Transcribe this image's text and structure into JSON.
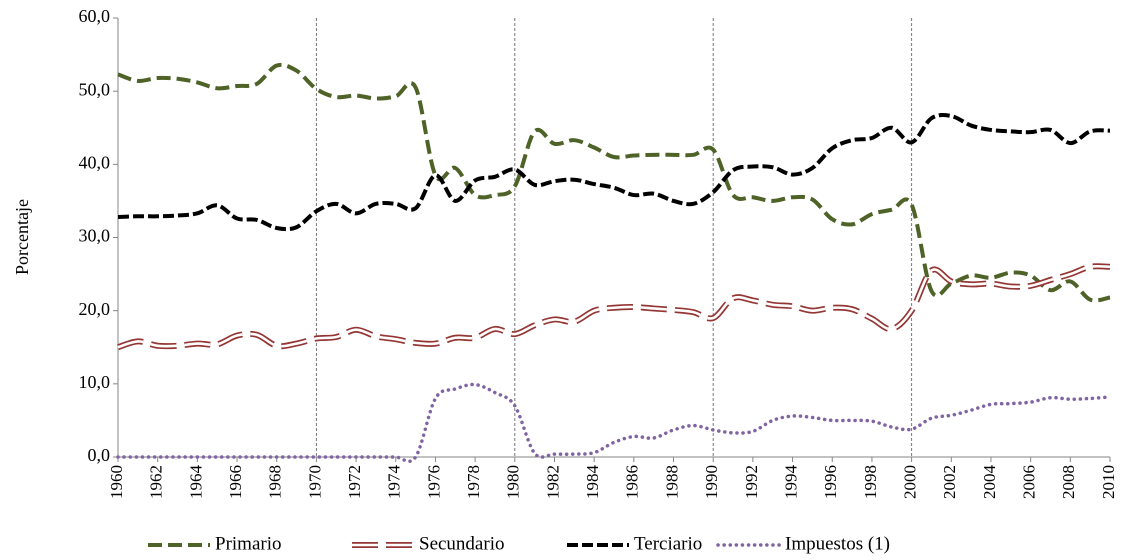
{
  "chart_data": {
    "type": "line",
    "y_label": "Porcentaje",
    "x": [
      1960,
      1961,
      1962,
      1963,
      1964,
      1965,
      1966,
      1967,
      1968,
      1969,
      1970,
      1971,
      1972,
      1973,
      1974,
      1975,
      1976,
      1977,
      1978,
      1979,
      1980,
      1981,
      1982,
      1983,
      1984,
      1985,
      1986,
      1987,
      1988,
      1989,
      1990,
      1991,
      1992,
      1993,
      1994,
      1995,
      1996,
      1997,
      1998,
      1999,
      2000,
      2001,
      2002,
      2003,
      2004,
      2005,
      2006,
      2007,
      2008,
      2009,
      2010
    ],
    "xlim": [
      1960,
      2010
    ],
    "xticks": [
      1960,
      1962,
      1964,
      1966,
      1968,
      1970,
      1972,
      1974,
      1976,
      1978,
      1980,
      1982,
      1984,
      1986,
      1988,
      1990,
      1992,
      1994,
      1996,
      1998,
      2000,
      2002,
      2004,
      2006,
      2008,
      2010
    ],
    "ylim": [
      0,
      60
    ],
    "yticks": [
      {
        "value": 0,
        "label": "0,0"
      },
      {
        "value": 10,
        "label": "10,0"
      },
      {
        "value": 20,
        "label": "20,0"
      },
      {
        "value": 30,
        "label": "30,0"
      },
      {
        "value": 40,
        "label": "40,0"
      },
      {
        "value": 50,
        "label": "50,0"
      },
      {
        "value": 60,
        "label": "60,0"
      }
    ],
    "vlines": [
      1970,
      1980,
      1990,
      2000
    ],
    "series": [
      {
        "name": "Primario",
        "color": "#4f6228",
        "style": "dashed",
        "values": [
          52.3,
          51.4,
          51.8,
          51.7,
          51.2,
          50.4,
          50.7,
          51.0,
          53.5,
          52.8,
          50.3,
          49.2,
          49.4,
          49.0,
          49.3,
          50.5,
          38.5,
          39.5,
          35.8,
          35.8,
          37.0,
          44.5,
          42.8,
          43.3,
          42.3,
          41.0,
          41.2,
          41.3,
          41.3,
          41.3,
          42.0,
          35.8,
          35.5,
          35.0,
          35.5,
          35.2,
          32.5,
          31.8,
          33.2,
          33.8,
          34.5,
          22.7,
          23.7,
          24.8,
          24.5,
          25.2,
          24.8,
          22.8,
          24.0,
          21.5,
          21.8
        ]
      },
      {
        "name": "Secundario",
        "color": "#943634",
        "style": "double",
        "values": [
          15.0,
          15.8,
          15.2,
          15.2,
          15.5,
          15.4,
          16.6,
          16.7,
          15.2,
          15.5,
          16.2,
          16.4,
          17.4,
          16.5,
          16.1,
          15.6,
          15.5,
          16.3,
          16.3,
          17.5,
          16.8,
          18.0,
          18.8,
          18.5,
          20.0,
          20.4,
          20.5,
          20.3,
          20.1,
          19.8,
          19.0,
          21.7,
          21.4,
          20.8,
          20.6,
          20.0,
          20.4,
          20.2,
          18.9,
          17.5,
          20.0,
          25.5,
          24.0,
          23.6,
          23.7,
          23.3,
          23.4,
          24.2,
          25.0,
          26.0,
          26.0
        ]
      },
      {
        "name": "Terciario",
        "color": "#000000",
        "style": "solid",
        "values": [
          32.8,
          32.9,
          32.9,
          33.0,
          33.3,
          34.4,
          32.6,
          32.4,
          31.3,
          31.4,
          33.6,
          34.6,
          33.3,
          34.6,
          34.6,
          34.0,
          38.5,
          35.0,
          37.8,
          38.3,
          39.3,
          37.2,
          37.7,
          37.9,
          37.3,
          36.8,
          35.8,
          36.0,
          35.0,
          34.6,
          36.2,
          39.2,
          39.7,
          39.6,
          38.6,
          39.5,
          42.2,
          43.3,
          43.6,
          45.0,
          43.0,
          46.3,
          46.6,
          45.3,
          44.7,
          44.5,
          44.4,
          44.7,
          42.9,
          44.5,
          44.6
        ]
      },
      {
        "name": "Impuestos (1)",
        "color": "#8064a2",
        "style": "dotted",
        "values": [
          0,
          0,
          0,
          0,
          0,
          0,
          0,
          0,
          0,
          0,
          0,
          0,
          0,
          0,
          0,
          0,
          8.0,
          9.3,
          9.9,
          8.8,
          7.0,
          0.5,
          0.4,
          0.4,
          0.6,
          2.0,
          2.8,
          2.6,
          3.7,
          4.3,
          3.7,
          3.3,
          3.5,
          5.0,
          5.6,
          5.4,
          5.0,
          5.0,
          4.9,
          4.1,
          3.8,
          5.3,
          5.7,
          6.4,
          7.2,
          7.3,
          7.5,
          8.1,
          7.9,
          8.0,
          8.2
        ]
      }
    ]
  }
}
